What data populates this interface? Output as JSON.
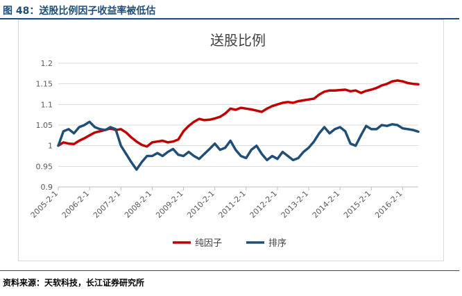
{
  "header": {
    "title": "图 48：送股比例因子收益率被低估"
  },
  "source": {
    "text": "资料来源：天软科技，长江证券研究所"
  },
  "chart_data": {
    "type": "line",
    "title": "送股比例",
    "xlabel": "",
    "ylabel": "",
    "ylim": [
      0.9,
      1.2
    ],
    "yticks": [
      0.9,
      0.95,
      1,
      1.05,
      1.1,
      1.15,
      1.2
    ],
    "ytick_labels": [
      "0.9",
      "0.95",
      "1",
      "1.05",
      "1.1",
      "1.15",
      "1.2"
    ],
    "xlim": [
      "2005-2-1",
      "2016-8-1"
    ],
    "xticks": [
      "2005-2-1",
      "2006-2-1",
      "2007-2-1",
      "2008-2-1",
      "2009-2-1",
      "2010-2-1",
      "2011-2-1",
      "2012-2-1",
      "2013-2-1",
      "2014-2-1",
      "2015-2-1",
      "2016-2-1"
    ],
    "grid": "horizontal",
    "legend_position": "bottom",
    "colors": {
      "纯因子": "#c00000",
      "排序": "#1f4e79",
      "grid": "#d9d9d9",
      "axis": "#bfbfbf"
    },
    "series": [
      {
        "name": "纯因子",
        "x": [
          "2005-2-1",
          "2005-4-1",
          "2005-6-1",
          "2005-8-1",
          "2005-10-1",
          "2005-12-1",
          "2006-2-1",
          "2006-4-1",
          "2006-6-1",
          "2006-8-1",
          "2006-10-1",
          "2006-12-1",
          "2007-2-1",
          "2007-4-1",
          "2007-6-1",
          "2007-8-1",
          "2007-10-1",
          "2007-12-1",
          "2008-2-1",
          "2008-4-1",
          "2008-6-1",
          "2008-8-1",
          "2008-10-1",
          "2008-12-1",
          "2009-2-1",
          "2009-4-1",
          "2009-6-1",
          "2009-8-1",
          "2009-10-1",
          "2009-12-1",
          "2010-2-1",
          "2010-4-1",
          "2010-6-1",
          "2010-8-1",
          "2010-10-1",
          "2010-12-1",
          "2011-2-1",
          "2011-4-1",
          "2011-6-1",
          "2011-8-1",
          "2011-10-1",
          "2011-12-1",
          "2012-2-1",
          "2012-4-1",
          "2012-6-1",
          "2012-8-1",
          "2012-10-1",
          "2012-12-1",
          "2013-2-1",
          "2013-4-1",
          "2013-6-1",
          "2013-8-1",
          "2013-10-1",
          "2013-12-1",
          "2014-2-1",
          "2014-4-1",
          "2014-6-1",
          "2014-8-1",
          "2014-10-1",
          "2014-12-1",
          "2015-2-1",
          "2015-4-1",
          "2015-6-1",
          "2015-8-1",
          "2015-10-1",
          "2015-12-1",
          "2016-2-1",
          "2016-4-1",
          "2016-6-1",
          "2016-8-1"
        ],
        "values": [
          1.0,
          1.008,
          1.005,
          1.004,
          1.012,
          1.018,
          1.025,
          1.032,
          1.035,
          1.038,
          1.042,
          1.038,
          1.04,
          1.032,
          1.02,
          1.01,
          1.002,
          0.998,
          1.008,
          1.01,
          1.012,
          1.008,
          1.01,
          1.015,
          1.035,
          1.048,
          1.058,
          1.065,
          1.062,
          1.063,
          1.066,
          1.07,
          1.078,
          1.09,
          1.087,
          1.092,
          1.09,
          1.088,
          1.085,
          1.082,
          1.09,
          1.096,
          1.1,
          1.104,
          1.106,
          1.104,
          1.108,
          1.11,
          1.112,
          1.114,
          1.124,
          1.131,
          1.134,
          1.134,
          1.135,
          1.136,
          1.132,
          1.134,
          1.128,
          1.133,
          1.136,
          1.14,
          1.146,
          1.15,
          1.156,
          1.158,
          1.156,
          1.152,
          1.15,
          1.149
        ]
      },
      {
        "name": "排序",
        "x": [
          "2005-2-1",
          "2005-4-1",
          "2005-6-1",
          "2005-8-1",
          "2005-10-1",
          "2005-12-1",
          "2006-2-1",
          "2006-4-1",
          "2006-6-1",
          "2006-8-1",
          "2006-10-1",
          "2006-12-1",
          "2007-2-1",
          "2007-4-1",
          "2007-6-1",
          "2007-8-1",
          "2007-10-1",
          "2007-12-1",
          "2008-2-1",
          "2008-4-1",
          "2008-6-1",
          "2008-8-1",
          "2008-10-1",
          "2008-12-1",
          "2009-2-1",
          "2009-4-1",
          "2009-6-1",
          "2009-8-1",
          "2009-10-1",
          "2009-12-1",
          "2010-2-1",
          "2010-4-1",
          "2010-6-1",
          "2010-8-1",
          "2010-10-1",
          "2010-12-1",
          "2011-2-1",
          "2011-4-1",
          "2011-6-1",
          "2011-8-1",
          "2011-10-1",
          "2011-12-1",
          "2012-2-1",
          "2012-4-1",
          "2012-6-1",
          "2012-8-1",
          "2012-10-1",
          "2012-12-1",
          "2013-2-1",
          "2013-4-1",
          "2013-6-1",
          "2013-8-1",
          "2013-10-1",
          "2013-12-1",
          "2014-2-1",
          "2014-4-1",
          "2014-6-1",
          "2014-8-1",
          "2014-10-1",
          "2014-12-1",
          "2015-2-1",
          "2015-4-1",
          "2015-6-1",
          "2015-8-1",
          "2015-10-1",
          "2015-12-1",
          "2016-2-1",
          "2016-4-1",
          "2016-6-1",
          "2016-8-1"
        ],
        "values": [
          1.0,
          1.035,
          1.04,
          1.03,
          1.045,
          1.05,
          1.058,
          1.045,
          1.04,
          1.038,
          1.045,
          1.04,
          1.0,
          0.98,
          0.96,
          0.942,
          0.96,
          0.975,
          0.975,
          0.982,
          0.975,
          0.985,
          0.992,
          0.978,
          0.975,
          0.985,
          0.975,
          0.968,
          0.98,
          0.992,
          1.005,
          0.99,
          0.995,
          1.012,
          0.99,
          0.975,
          0.97,
          0.99,
          1.0,
          0.98,
          0.965,
          0.975,
          0.968,
          0.985,
          0.975,
          0.965,
          0.97,
          0.985,
          0.995,
          1.01,
          1.03,
          1.045,
          1.03,
          1.04,
          1.045,
          1.035,
          1.005,
          1.0,
          1.025,
          1.048,
          1.04,
          1.04,
          1.05,
          1.048,
          1.052,
          1.05,
          1.042,
          1.04,
          1.038,
          1.034
        ]
      }
    ]
  }
}
